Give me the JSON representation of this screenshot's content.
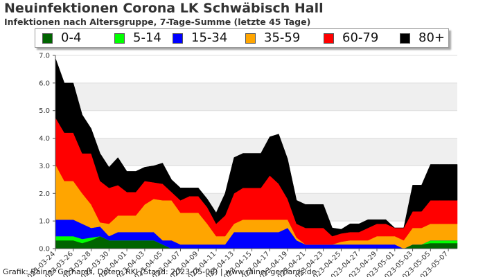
{
  "title": "Neuinfektionen Corona LK Schwäbisch Hall",
  "subtitle": "Infektionen nach Altersgruppe, 7-Tage-Summe (letzte 45 Tage)",
  "credit": "Grafik: Rainer Gerhards, Daten: RKI (Stand: 2023-05-08) | www.rainer-gerhards.de",
  "legend": [
    {
      "label": "0-4",
      "color": "#006400"
    },
    {
      "label": "5-14",
      "color": "#00ff00"
    },
    {
      "label": "15-34",
      "color": "#0000ff"
    },
    {
      "label": "35-59",
      "color": "#ffa500"
    },
    {
      "label": "60-79",
      "color": "#ff0000"
    },
    {
      "label": "80+",
      "color": "#000000"
    }
  ],
  "chart_data": {
    "type": "area",
    "stacked": true,
    "title": "Neuinfektionen Corona LK Schwäbisch Hall",
    "subtitle": "Infektionen nach Altersgruppe, 7-Tage-Summe (letzte 45 Tage)",
    "ylim": [
      0,
      7
    ],
    "yticks": [
      "0.0",
      "1.0",
      "2.0",
      "3.0",
      "4.0",
      "5.0",
      "6.0",
      "7.0"
    ],
    "grid": true,
    "legend_position": "top",
    "x": [
      "2023-03-24",
      "2023-03-25",
      "2023-03-26",
      "2023-03-27",
      "2023-03-28",
      "2023-03-29",
      "2023-03-30",
      "2023-03-31",
      "2023-04-01",
      "2023-04-02",
      "2023-04-03",
      "2023-04-04",
      "2023-04-05",
      "2023-04-06",
      "2023-04-07",
      "2023-04-08",
      "2023-04-09",
      "2023-04-10",
      "2023-04-11",
      "2023-04-12",
      "2023-04-13",
      "2023-04-14",
      "2023-04-15",
      "2023-04-16",
      "2023-04-17",
      "2023-04-18",
      "2023-04-19",
      "2023-04-20",
      "2023-04-21",
      "2023-04-22",
      "2023-04-23",
      "2023-04-24",
      "2023-04-25",
      "2023-04-26",
      "2023-04-27",
      "2023-04-28",
      "2023-04-29",
      "2023-04-30",
      "2023-05-01",
      "2023-05-02",
      "2023-05-03",
      "2023-05-04",
      "2023-05-05",
      "2023-05-06",
      "2023-05-07",
      "2023-05-08"
    ],
    "xticks": [
      "2023-03-24",
      "2023-03-26",
      "2023-03-28",
      "2023-03-30",
      "2023-04-01",
      "2023-04-03",
      "2023-04-05",
      "2023-04-07",
      "2023-04-09",
      "2023-04-11",
      "2023-04-13",
      "2023-04-15",
      "2023-04-17",
      "2023-04-19",
      "2023-04-21",
      "2023-04-23",
      "2023-04-25",
      "2023-04-27",
      "2023-04-29",
      "2023-05-01",
      "2023-05-03",
      "2023-05-05",
      "2023-05-07"
    ],
    "series": [
      {
        "name": "0-4",
        "color": "#006400",
        "values": [
          0.3,
          0.3,
          0.3,
          0.2,
          0.3,
          0.45,
          0.3,
          0.3,
          0.3,
          0.3,
          0.3,
          0.3,
          0.15,
          0,
          0,
          0,
          0,
          0,
          0,
          0,
          0,
          0,
          0,
          0,
          0,
          0,
          0,
          0,
          0,
          0,
          0,
          0,
          0,
          0,
          0,
          0,
          0,
          0,
          0,
          0,
          0.15,
          0.15,
          0.2,
          0.2,
          0.2,
          0.2
        ]
      },
      {
        "name": "5-14",
        "color": "#00ff00",
        "values": [
          0.15,
          0.15,
          0.15,
          0.15,
          0.1,
          0,
          0,
          0,
          0,
          0,
          0,
          0,
          0,
          0,
          0,
          0,
          0,
          0,
          0,
          0,
          0,
          0,
          0,
          0,
          0,
          0,
          0,
          0,
          0,
          0,
          0,
          0,
          0,
          0,
          0,
          0,
          0,
          0,
          0,
          0,
          0,
          0,
          0.1,
          0.1,
          0.1,
          0.1
        ]
      },
      {
        "name": "15-34",
        "color": "#0000ff",
        "values": [
          0.6,
          0.6,
          0.6,
          0.55,
          0.35,
          0.35,
          0.15,
          0.3,
          0.3,
          0.3,
          0.3,
          0.3,
          0.15,
          0.3,
          0.15,
          0.15,
          0.15,
          0.15,
          0.15,
          0.15,
          0.6,
          0.6,
          0.6,
          0.6,
          0.6,
          0.6,
          0.75,
          0.3,
          0.15,
          0.15,
          0.15,
          0.15,
          0.15,
          0.15,
          0.15,
          0.15,
          0.15,
          0.15,
          0.15,
          0,
          0,
          0,
          0,
          0,
          0,
          0
        ]
      },
      {
        "name": "35-59",
        "color": "#ffa500",
        "values": [
          2.0,
          1.4,
          1.4,
          1.1,
          0.85,
          0.15,
          0.45,
          0.6,
          0.6,
          0.6,
          1.0,
          1.2,
          1.45,
          1.45,
          1.15,
          1.15,
          1.15,
          0.75,
          0.3,
          0.3,
          0.3,
          0.45,
          0.45,
          0.45,
          0.45,
          0.45,
          0.3,
          0.1,
          0,
          0,
          0,
          0,
          0.1,
          0.15,
          0.15,
          0.15,
          0.3,
          0.3,
          0.3,
          0.3,
          0.6,
          0.6,
          0.6,
          0.6,
          0.6,
          0.6
        ]
      },
      {
        "name": "60-79",
        "color": "#ff0000",
        "values": [
          1.7,
          1.75,
          1.75,
          1.45,
          1.85,
          1.5,
          1.3,
          1.1,
          0.85,
          0.85,
          0.85,
          0.6,
          0.6,
          0.3,
          0.45,
          0.6,
          0.6,
          0.6,
          0.45,
          0.75,
          1.1,
          1.15,
          1.15,
          1.15,
          1.6,
          1.3,
          0.75,
          0.5,
          0.6,
          0.6,
          0.6,
          0.3,
          0.3,
          0.3,
          0.3,
          0.45,
          0.45,
          0.45,
          0.3,
          0.45,
          0.6,
          0.6,
          0.85,
          0.85,
          0.85,
          0.85
        ]
      },
      {
        "name": "80+",
        "color": "#000000",
        "values": [
          2.15,
          1.8,
          1.8,
          1.4,
          0.9,
          1.0,
          0.75,
          1.0,
          0.75,
          0.75,
          0.5,
          0.6,
          0.75,
          0.45,
          0.45,
          0.3,
          0.3,
          0.3,
          0.4,
          0.8,
          1.3,
          1.25,
          1.25,
          1.25,
          1.4,
          1.8,
          1.45,
          0.85,
          0.85,
          0.85,
          0.85,
          0.3,
          0.15,
          0.3,
          0.3,
          0.3,
          0.15,
          0.15,
          0,
          0,
          0.95,
          0.95,
          1.3,
          1.3,
          1.3,
          1.3
        ]
      }
    ]
  }
}
